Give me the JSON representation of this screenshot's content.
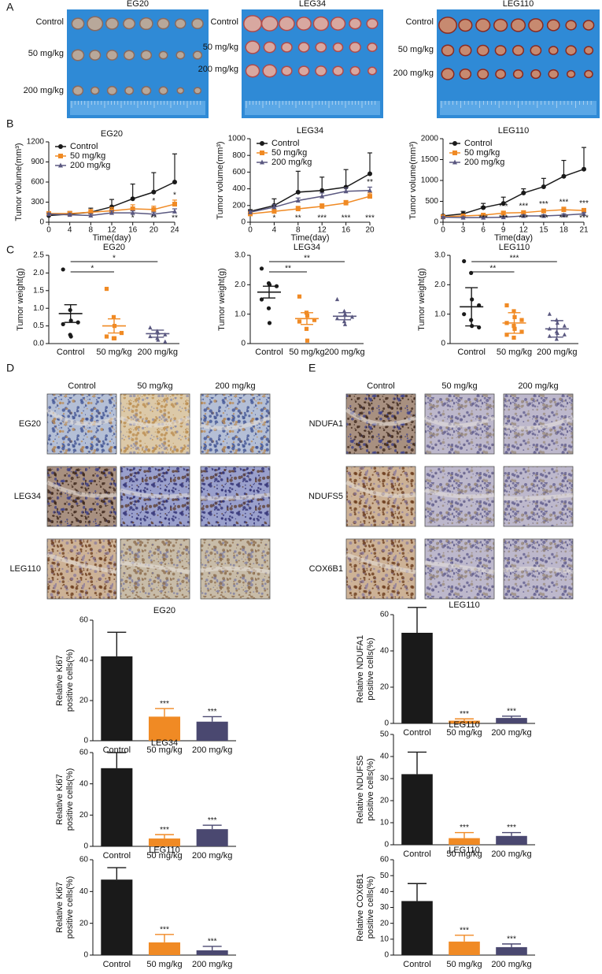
{
  "panels": [
    "A",
    "B",
    "C",
    "D",
    "E"
  ],
  "tumor_photos": {
    "titles": [
      "EG20",
      "LEG34",
      "LEG110"
    ],
    "row_labels": [
      [
        "Control",
        "50 mg/kg",
        "200 mg/kg"
      ],
      [
        "Control",
        "50 mg/kg",
        "200 mg/kg"
      ],
      [
        "Control",
        "50 mg/kg",
        "200 mg/kg"
      ]
    ]
  },
  "ihc_d": {
    "columns": [
      "Control",
      "50 mg/kg",
      "200 mg/kg"
    ],
    "rows": [
      "EG20",
      "LEG34",
      "LEG110"
    ]
  },
  "ihc_e": {
    "columns": [
      "Control",
      "50 mg/kg",
      "200 mg/kg"
    ],
    "rows": [
      "NDUFA1",
      "NDUFS5",
      "COX6B1"
    ]
  },
  "chart_data": [
    {
      "type": "line",
      "title": "EG20",
      "xlabel": "Time(day)",
      "ylabel": "Tumor volume(mm³)",
      "legend": "upper left",
      "x": [
        0,
        4,
        8,
        12,
        16,
        20,
        24
      ],
      "xlim": [
        0,
        24
      ],
      "xticks": [
        0,
        4,
        8,
        12,
        16,
        20,
        24
      ],
      "ylim": [
        0,
        1200
      ],
      "yticks": [
        0,
        300,
        600,
        900,
        1200
      ],
      "series": [
        {
          "name": "Control",
          "color": "#1a1a1a",
          "marker": "circle",
          "values": [
            100,
            120,
            150,
            230,
            350,
            450,
            600
          ],
          "errors": [
            15,
            40,
            60,
            110,
            220,
            290,
            420
          ]
        },
        {
          "name": "50 mg/kg",
          "color": "#f08a24",
          "marker": "square",
          "values": [
            130,
            130,
            150,
            170,
            200,
            190,
            270
          ],
          "errors": [
            20,
            30,
            40,
            50,
            60,
            50,
            60
          ]
        },
        {
          "name": "200 mg/kg",
          "color": "#5a5880",
          "marker": "triangle",
          "values": [
            120,
            110,
            100,
            140,
            140,
            120,
            160
          ],
          "errors": [
            15,
            20,
            25,
            30,
            30,
            30,
            40
          ]
        }
      ],
      "annotations": [
        {
          "x": 16,
          "labels": [
            "*",
            "*"
          ]
        },
        {
          "x": 20,
          "labels": [
            "*",
            "**"
          ]
        },
        {
          "x": 24,
          "labels": [
            "*",
            "**"
          ]
        }
      ]
    },
    {
      "type": "line",
      "title": "LEG34",
      "xlabel": "Time(day)",
      "ylabel": "Tumor volume(mm³)",
      "legend": "upper left",
      "x": [
        0,
        4,
        8,
        12,
        16,
        20
      ],
      "xlim": [
        0,
        20
      ],
      "xticks": [
        0,
        4,
        8,
        12,
        16,
        20
      ],
      "ylim": [
        0,
        1000
      ],
      "yticks": [
        0,
        200,
        400,
        600,
        800,
        1000
      ],
      "series": [
        {
          "name": "Control",
          "color": "#1a1a1a",
          "marker": "circle",
          "values": [
            130,
            200,
            360,
            380,
            420,
            580
          ],
          "errors": [
            20,
            80,
            250,
            160,
            210,
            250
          ]
        },
        {
          "name": "50 mg/kg",
          "color": "#f08a24",
          "marker": "square",
          "values": [
            100,
            130,
            160,
            190,
            230,
            310
          ],
          "errors": [
            10,
            25,
            30,
            30,
            30,
            40
          ]
        },
        {
          "name": "200 mg/kg",
          "color": "#5a5880",
          "marker": "triangle",
          "values": [
            120,
            180,
            260,
            310,
            370,
            380
          ],
          "errors": [
            15,
            30,
            30,
            40,
            40,
            40
          ]
        }
      ],
      "annotations": [
        {
          "x": 4,
          "labels": [
            "*"
          ]
        },
        {
          "x": 8,
          "labels": [
            "**"
          ]
        },
        {
          "x": 12,
          "labels": [
            "***"
          ]
        },
        {
          "x": 16,
          "labels": [
            "***"
          ]
        },
        {
          "x": 20,
          "labels": [
            "**",
            "***"
          ]
        }
      ]
    },
    {
      "type": "line",
      "title": "LEG110",
      "xlabel": "Time(day)",
      "ylabel": "Tumor volume(mm³)",
      "legend": "upper left",
      "x": [
        0,
        3,
        6,
        9,
        12,
        15,
        18,
        21
      ],
      "xlim": [
        0,
        21
      ],
      "xticks": [
        0,
        3,
        6,
        9,
        12,
        15,
        18,
        21
      ],
      "ylim": [
        0,
        2000
      ],
      "yticks": [
        0,
        500,
        1000,
        1500,
        2000
      ],
      "series": [
        {
          "name": "Control",
          "color": "#1a1a1a",
          "marker": "circle",
          "values": [
            150,
            200,
            350,
            450,
            700,
            850,
            1100,
            1270
          ],
          "errors": [
            30,
            60,
            100,
            150,
            100,
            200,
            380,
            520
          ]
        },
        {
          "name": "50 mg/kg",
          "color": "#f08a24",
          "marker": "square",
          "values": [
            130,
            150,
            170,
            220,
            230,
            270,
            300,
            280
          ],
          "errors": [
            20,
            30,
            30,
            40,
            40,
            40,
            60,
            50
          ]
        },
        {
          "name": "200 mg/kg",
          "color": "#5a5880",
          "marker": "triangle",
          "values": [
            120,
            110,
            110,
            120,
            150,
            150,
            170,
            200
          ],
          "errors": [
            15,
            20,
            20,
            20,
            30,
            30,
            30,
            30
          ]
        }
      ],
      "annotations": [
        {
          "x": 6,
          "labels": [
            "**",
            "***"
          ]
        },
        {
          "x": 9,
          "labels": [
            "***",
            "***"
          ]
        },
        {
          "x": 12,
          "labels": [
            "***",
            "***"
          ]
        },
        {
          "x": 15,
          "labels": [
            "***",
            "***"
          ]
        },
        {
          "x": 18,
          "labels": [
            "***",
            "***"
          ]
        },
        {
          "x": 21,
          "labels": [
            "***",
            "***"
          ]
        }
      ]
    },
    {
      "type": "dot",
      "title": "EG20",
      "ylabel": "Tumor weight(g)",
      "categories": [
        "Control",
        "50 mg/kg",
        "200 mg/kg"
      ],
      "ylim": [
        0,
        2.5
      ],
      "yticks": [
        {
          "value": 0,
          "label": "0.0"
        },
        0.5,
        {
          "value": 1,
          "label": "1.0"
        },
        1.5,
        {
          "value": 2,
          "label": "2.0"
        },
        2.5
      ],
      "groups": [
        {
          "color": "#1a1a1a",
          "marker": "circle",
          "values": [
            2.1,
            0.95,
            0.65,
            0.6,
            0.55,
            0.25,
            0.2
          ],
          "mean": 0.85,
          "error": 0.25
        },
        {
          "color": "#f08a24",
          "marker": "square",
          "values": [
            1.55,
            0.75,
            0.5,
            0.3,
            0.2,
            0.15,
            0.15
          ],
          "mean": 0.5,
          "error": 0.2
        },
        {
          "color": "#5a5880",
          "marker": "triangle",
          "values": [
            0.45,
            0.35,
            0.3,
            0.25,
            0.2,
            0.15,
            0.1,
            0.05
          ],
          "mean": 0.28,
          "error": 0.1
        }
      ],
      "brackets": [
        {
          "between": [
            "Control",
            "200 mg/kg"
          ],
          "label": "*"
        },
        {
          "between": [
            "Control",
            "50 mg/kg"
          ],
          "label": "*"
        }
      ]
    },
    {
      "type": "dot",
      "title": "LEG34",
      "ylabel": "Tumor weight(g)",
      "categories": [
        "Control",
        "50 mg/kg",
        "200 mg/kg"
      ],
      "ylim": [
        0,
        3
      ],
      "yticks": [
        0,
        {
          "value": 1,
          "label": "1.0"
        },
        {
          "value": 2,
          "label": "2.0"
        },
        {
          "value": 3,
          "label": "3.0"
        }
      ],
      "groups": [
        {
          "color": "#1a1a1a",
          "marker": "circle",
          "values": [
            2.55,
            2.05,
            2.0,
            1.95,
            1.5,
            1.2,
            0.7
          ],
          "mean": 1.75,
          "error": 0.2
        },
        {
          "color": "#f08a24",
          "marker": "square",
          "values": [
            1.6,
            1.05,
            0.95,
            0.8,
            0.75,
            0.5,
            0.1
          ],
          "mean": 0.85,
          "error": 0.2
        },
        {
          "color": "#5a5880",
          "marker": "triangle",
          "values": [
            1.5,
            1.1,
            1.0,
            0.9,
            0.85,
            0.75,
            0.65
          ],
          "mean": 0.93,
          "error": 0.12
        }
      ],
      "brackets": [
        {
          "between": [
            "Control",
            "200 mg/kg"
          ],
          "label": "**"
        },
        {
          "between": [
            "Control",
            "50 mg/kg"
          ],
          "label": "**"
        }
      ]
    },
    {
      "type": "dot",
      "title": "LEG110",
      "ylabel": "Tumor weight(g)",
      "categories": [
        "Control",
        "50 mg/kg",
        "200 mg/kg"
      ],
      "ylim": [
        0,
        3
      ],
      "yticks": [
        0,
        {
          "value": 1,
          "label": "1.0"
        },
        {
          "value": 2,
          "label": "2.0"
        },
        {
          "value": 3,
          "label": "3.0"
        }
      ],
      "groups": [
        {
          "color": "#1a1a1a",
          "marker": "circle",
          "values": [
            2.8,
            2.4,
            1.5,
            1.3,
            1.0,
            0.8,
            0.6,
            0.55
          ],
          "mean": 1.25,
          "error": 0.65
        },
        {
          "color": "#f08a24",
          "marker": "square",
          "values": [
            1.3,
            1.1,
            0.9,
            0.8,
            0.7,
            0.6,
            0.5,
            0.4,
            0.3,
            0.2
          ],
          "mean": 0.7,
          "error": 0.35
        },
        {
          "color": "#5a5880",
          "marker": "triangle",
          "values": [
            1.0,
            0.8,
            0.7,
            0.6,
            0.5,
            0.4,
            0.35,
            0.3,
            0.25,
            0.15
          ],
          "mean": 0.5,
          "error": 0.28
        }
      ],
      "brackets": [
        {
          "between": [
            "Control",
            "200 mg/kg"
          ],
          "label": "***"
        },
        {
          "between": [
            "Control",
            "50 mg/kg"
          ],
          "label": "**"
        }
      ]
    },
    {
      "type": "bar",
      "title": "EG20",
      "ylabel": [
        "Relative Ki67",
        "positive cells(%)"
      ],
      "categories": [
        "Control",
        "50 mg/kg",
        "200 mg/kg"
      ],
      "colors": [
        "#1a1a1a",
        "#f08a24",
        "#4a4870"
      ],
      "ylim": [
        0,
        60
      ],
      "yticks": [
        0,
        20,
        40,
        60
      ],
      "values": [
        42,
        12,
        9.5
      ],
      "errors": [
        12,
        4,
        2.5
      ],
      "significance": [
        null,
        "***",
        "***"
      ]
    },
    {
      "type": "bar",
      "title": "LEG34",
      "ylabel": [
        "Relative Ki67",
        "positive cells(%)"
      ],
      "categories": [
        "Control",
        "50 mg/kg",
        "200 mg/kg"
      ],
      "colors": [
        "#1a1a1a",
        "#f08a24",
        "#4a4870"
      ],
      "ylim": [
        0,
        60
      ],
      "yticks": [
        0,
        20,
        40,
        60
      ],
      "values": [
        50,
        5,
        11
      ],
      "errors": [
        10,
        2.5,
        2.5
      ],
      "significance": [
        null,
        "***",
        "***"
      ]
    },
    {
      "type": "bar",
      "title": "LEG110",
      "ylabel": [
        "Relative Ki67",
        "positive cells(%)"
      ],
      "categories": [
        "Control",
        "50 mg/kg",
        "200 mg/kg"
      ],
      "colors": [
        "#1a1a1a",
        "#f08a24",
        "#4a4870"
      ],
      "ylim": [
        0,
        60
      ],
      "yticks": [
        0,
        20,
        40,
        60
      ],
      "values": [
        47.5,
        8,
        3
      ],
      "errors": [
        7.5,
        5,
        2.5
      ],
      "significance": [
        null,
        "***",
        "***"
      ]
    },
    {
      "type": "bar",
      "title": "LEG110",
      "ylabel": [
        "Relative NDUFA1",
        "positive cells(%)"
      ],
      "categories": [
        "Control",
        "50 mg/kg",
        "200 mg/kg"
      ],
      "colors": [
        "#1a1a1a",
        "#f08a24",
        "#4a4870"
      ],
      "ylim": [
        0,
        60
      ],
      "yticks": [
        0,
        20,
        40,
        60
      ],
      "values": [
        50,
        1.5,
        3
      ],
      "errors": [
        14,
        1,
        1
      ],
      "significance": [
        null,
        "***",
        "***"
      ]
    },
    {
      "type": "bar",
      "title": "LEG110",
      "ylabel": [
        "Relative NDUFS5",
        "positive cells(%)"
      ],
      "categories": [
        "Control",
        "50 mg/kg",
        "200 mg/kg"
      ],
      "colors": [
        "#1a1a1a",
        "#f08a24",
        "#4a4870"
      ],
      "ylim": [
        0,
        50
      ],
      "yticks": [
        0,
        10,
        20,
        30,
        40,
        50
      ],
      "values": [
        32,
        3,
        4
      ],
      "errors": [
        10,
        2.5,
        1.5
      ],
      "significance": [
        null,
        "***",
        "***"
      ]
    },
    {
      "type": "bar",
      "title": "LEG110",
      "ylabel": [
        "Relative COX6B1",
        "positive cells(%)"
      ],
      "categories": [
        "Control",
        "50 mg/kg",
        "200 mg/kg"
      ],
      "colors": [
        "#1a1a1a",
        "#f08a24",
        "#4a4870"
      ],
      "ylim": [
        0,
        60
      ],
      "yticks": [
        0,
        10,
        20,
        30,
        40,
        50,
        60
      ],
      "values": [
        34,
        8.5,
        5
      ],
      "errors": [
        11,
        4,
        2
      ],
      "significance": [
        null,
        "***",
        "***"
      ]
    }
  ]
}
